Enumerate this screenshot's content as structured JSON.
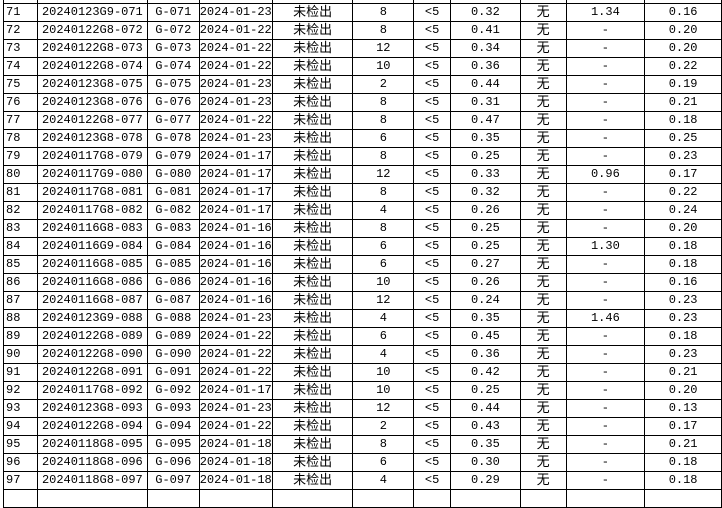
{
  "table": {
    "rows": [
      [
        "71",
        "20240123G9-071",
        "G-071",
        "2024-01-23",
        "未检出",
        "8",
        "<5",
        "0.32",
        "无",
        "1.34",
        "0.16"
      ],
      [
        "72",
        "20240122G8-072",
        "G-072",
        "2024-01-22",
        "未检出",
        "8",
        "<5",
        "0.41",
        "无",
        "-",
        "0.20"
      ],
      [
        "73",
        "20240122G8-073",
        "G-073",
        "2024-01-22",
        "未检出",
        "12",
        "<5",
        "0.34",
        "无",
        "-",
        "0.20"
      ],
      [
        "74",
        "20240122G8-074",
        "G-074",
        "2024-01-22",
        "未检出",
        "10",
        "<5",
        "0.36",
        "无",
        "-",
        "0.22"
      ],
      [
        "75",
        "20240123G8-075",
        "G-075",
        "2024-01-23",
        "未检出",
        "2",
        "<5",
        "0.44",
        "无",
        "-",
        "0.19"
      ],
      [
        "76",
        "20240123G8-076",
        "G-076",
        "2024-01-23",
        "未检出",
        "8",
        "<5",
        "0.31",
        "无",
        "-",
        "0.21"
      ],
      [
        "77",
        "20240122G8-077",
        "G-077",
        "2024-01-22",
        "未检出",
        "8",
        "<5",
        "0.47",
        "无",
        "-",
        "0.18"
      ],
      [
        "78",
        "20240123G8-078",
        "G-078",
        "2024-01-23",
        "未检出",
        "6",
        "<5",
        "0.35",
        "无",
        "-",
        "0.25"
      ],
      [
        "79",
        "20240117G8-079",
        "G-079",
        "2024-01-17",
        "未检出",
        "8",
        "<5",
        "0.25",
        "无",
        "-",
        "0.23"
      ],
      [
        "80",
        "20240117G9-080",
        "G-080",
        "2024-01-17",
        "未检出",
        "12",
        "<5",
        "0.33",
        "无",
        "0.96",
        "0.17"
      ],
      [
        "81",
        "20240117G8-081",
        "G-081",
        "2024-01-17",
        "未检出",
        "8",
        "<5",
        "0.32",
        "无",
        "-",
        "0.22"
      ],
      [
        "82",
        "20240117G8-082",
        "G-082",
        "2024-01-17",
        "未检出",
        "4",
        "<5",
        "0.26",
        "无",
        "-",
        "0.24"
      ],
      [
        "83",
        "20240116G8-083",
        "G-083",
        "2024-01-16",
        "未检出",
        "8",
        "<5",
        "0.25",
        "无",
        "-",
        "0.20"
      ],
      [
        "84",
        "20240116G9-084",
        "G-084",
        "2024-01-16",
        "未检出",
        "6",
        "<5",
        "0.25",
        "无",
        "1.30",
        "0.18"
      ],
      [
        "85",
        "20240116G8-085",
        "G-085",
        "2024-01-16",
        "未检出",
        "6",
        "<5",
        "0.27",
        "无",
        "-",
        "0.18"
      ],
      [
        "86",
        "20240116G8-086",
        "G-086",
        "2024-01-16",
        "未检出",
        "10",
        "<5",
        "0.26",
        "无",
        "-",
        "0.16"
      ],
      [
        "87",
        "20240116G8-087",
        "G-087",
        "2024-01-16",
        "未检出",
        "12",
        "<5",
        "0.24",
        "无",
        "-",
        "0.23"
      ],
      [
        "88",
        "20240123G9-088",
        "G-088",
        "2024-01-23",
        "未检出",
        "4",
        "<5",
        "0.35",
        "无",
        "1.46",
        "0.23"
      ],
      [
        "89",
        "20240122G8-089",
        "G-089",
        "2024-01-22",
        "未检出",
        "6",
        "<5",
        "0.45",
        "无",
        "-",
        "0.18"
      ],
      [
        "90",
        "20240122G8-090",
        "G-090",
        "2024-01-22",
        "未检出",
        "4",
        "<5",
        "0.36",
        "无",
        "-",
        "0.23"
      ],
      [
        "91",
        "20240122G8-091",
        "G-091",
        "2024-01-22",
        "未检出",
        "10",
        "<5",
        "0.42",
        "无",
        "-",
        "0.21"
      ],
      [
        "92",
        "20240117G8-092",
        "G-092",
        "2024-01-17",
        "未检出",
        "10",
        "<5",
        "0.25",
        "无",
        "-",
        "0.20"
      ],
      [
        "93",
        "20240123G8-093",
        "G-093",
        "2024-01-23",
        "未检出",
        "12",
        "<5",
        "0.44",
        "无",
        "-",
        "0.13"
      ],
      [
        "94",
        "20240122G8-094",
        "G-094",
        "2024-01-22",
        "未检出",
        "2",
        "<5",
        "0.43",
        "无",
        "-",
        "0.17"
      ],
      [
        "95",
        "20240118G8-095",
        "G-095",
        "2024-01-18",
        "未检出",
        "8",
        "<5",
        "0.35",
        "无",
        "-",
        "0.21"
      ],
      [
        "96",
        "20240118G8-096",
        "G-096",
        "2024-01-18",
        "未检出",
        "6",
        "<5",
        "0.30",
        "无",
        "-",
        "0.18"
      ],
      [
        "97",
        "20240118G8-097",
        "G-097",
        "2024-01-18",
        "未检出",
        "4",
        "<5",
        "0.29",
        "无",
        "-",
        "0.18"
      ]
    ]
  }
}
